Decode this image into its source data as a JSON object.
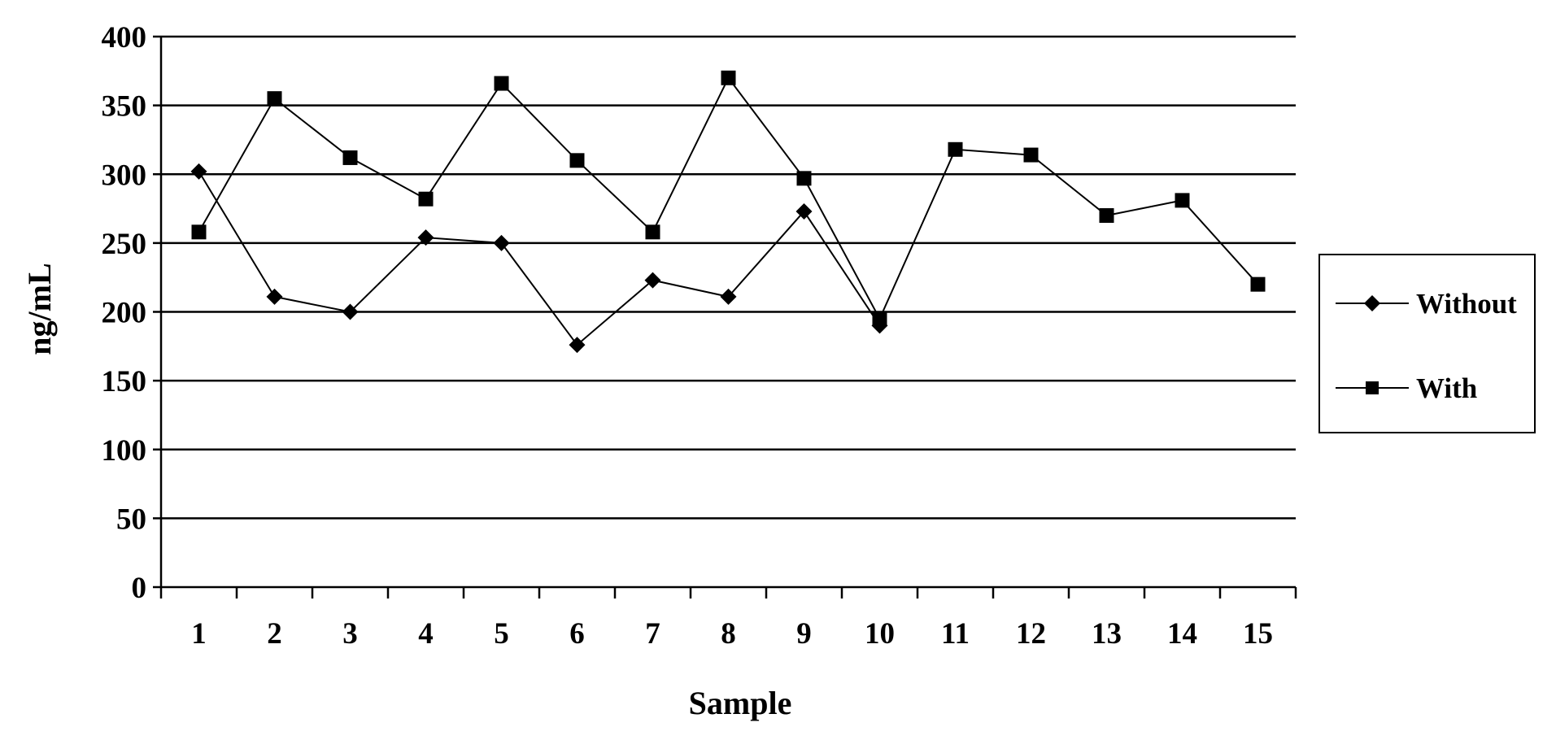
{
  "chart_data": {
    "type": "line",
    "title": "",
    "xlabel": "Sample",
    "ylabel": "ng/mL",
    "categories": [
      "1",
      "2",
      "3",
      "4",
      "5",
      "6",
      "7",
      "8",
      "9",
      "10",
      "11",
      "12",
      "13",
      "14",
      "15"
    ],
    "ylim": [
      0,
      400
    ],
    "yticks": [
      0,
      50,
      100,
      150,
      200,
      250,
      300,
      350,
      400
    ],
    "grid": true,
    "legend_position": "right",
    "series": [
      {
        "name": "Without",
        "marker": "diamond",
        "color": "#000000",
        "values": [
          302,
          211,
          200,
          254,
          250,
          176,
          223,
          211,
          273,
          190,
          null,
          null,
          null,
          null,
          null
        ]
      },
      {
        "name": "With",
        "marker": "square",
        "color": "#000000",
        "values": [
          258,
          355,
          312,
          282,
          366,
          310,
          258,
          370,
          297,
          195,
          318,
          314,
          270,
          281,
          220
        ]
      }
    ]
  }
}
